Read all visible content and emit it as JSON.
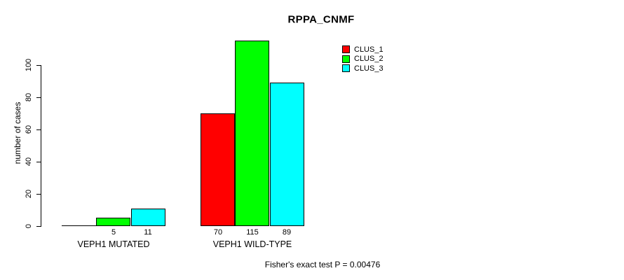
{
  "chart_data": {
    "type": "bar",
    "title": "RPPA_CNMF",
    "xlabel": "",
    "ylabel": "number of cases",
    "ylim": [
      0,
      115
    ],
    "y_ticks": [
      0,
      20,
      40,
      60,
      80,
      100
    ],
    "categories": [
      "VEPH1 MUTATED",
      "VEPH1 WILD-TYPE"
    ],
    "series": [
      {
        "name": "CLUS_1",
        "color": "#ff0000",
        "values": [
          0,
          70
        ]
      },
      {
        "name": "CLUS_2",
        "color": "#00ff00",
        "values": [
          5,
          115
        ]
      },
      {
        "name": "CLUS_3",
        "color": "#00ffff",
        "values": [
          11,
          89
        ]
      }
    ],
    "bar_value_labels_shown": [
      "5",
      "11",
      "70",
      "115",
      "89"
    ],
    "legend_position": "top-right",
    "grid": false,
    "annotation": "Fisher's exact test P = 0.00476",
    "axis_color": "#000000",
    "bar_border_color": "#000000"
  }
}
